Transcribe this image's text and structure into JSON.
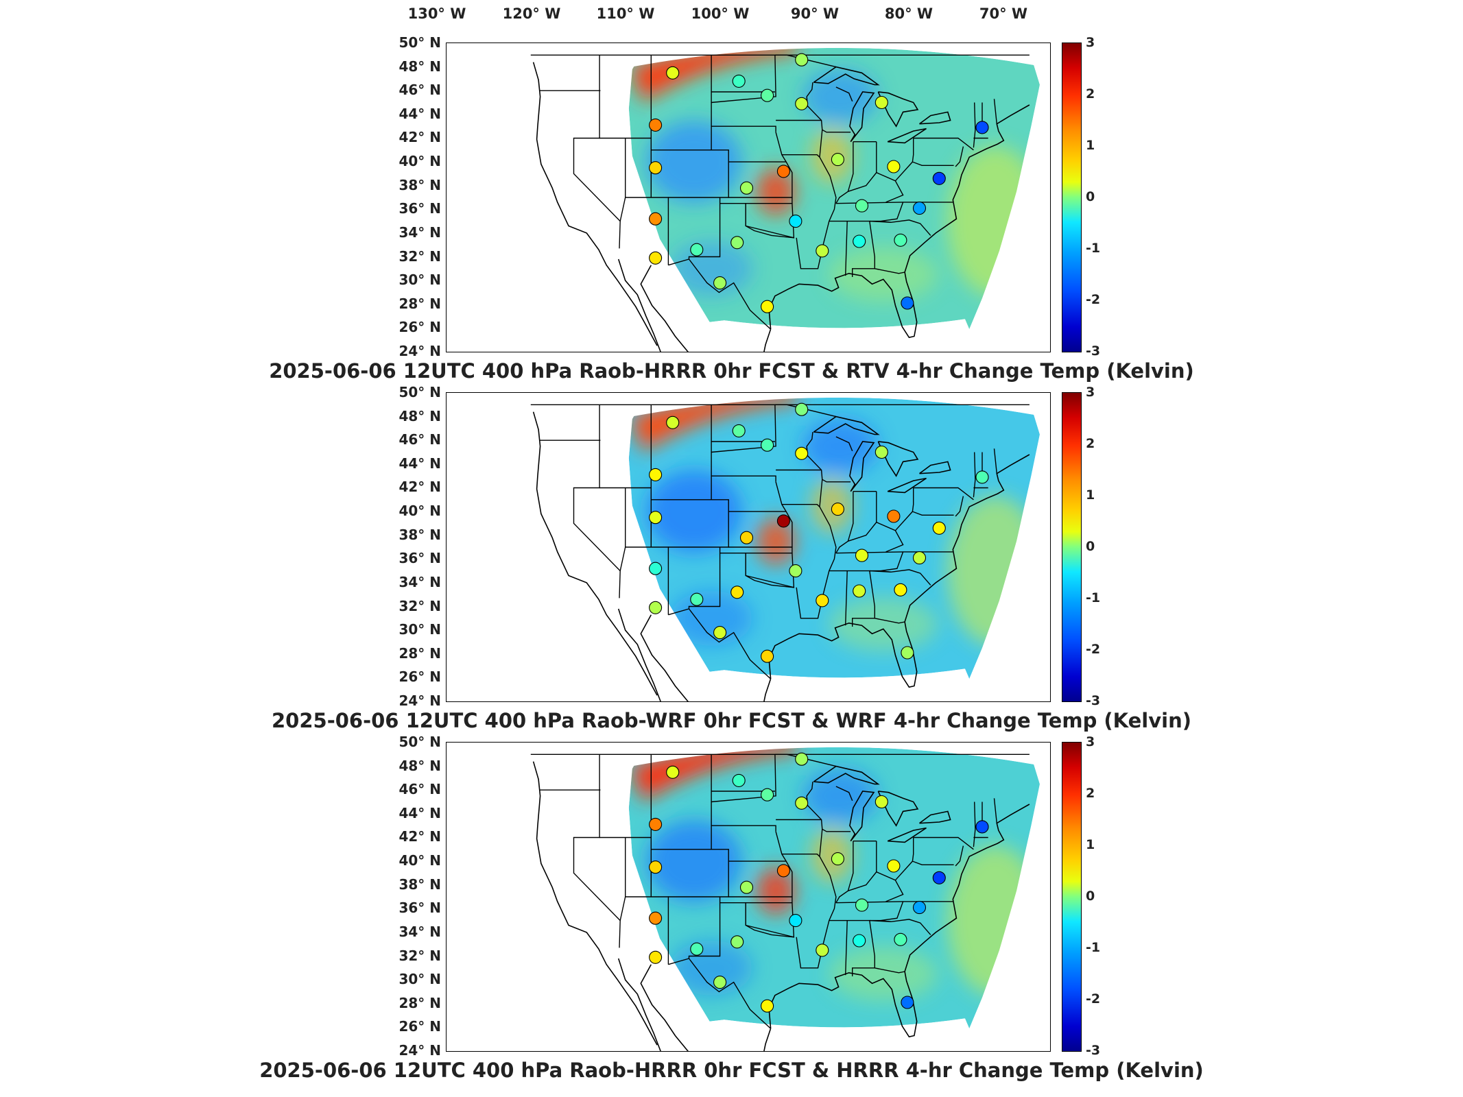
{
  "longitude_labels": [
    "130° W",
    "120° W",
    "110° W",
    "100° W",
    "90° W",
    "80° W",
    "70° W"
  ],
  "latitude_labels": [
    "50° N",
    "48° N",
    "46° N",
    "44° N",
    "42° N",
    "40° N",
    "38° N",
    "36° N",
    "34° N",
    "32° N",
    "30° N",
    "28° N",
    "26° N",
    "24° N"
  ],
  "colorbar": {
    "ticks": [
      "3",
      "2",
      "1",
      "0",
      "-1",
      "-2",
      "-3"
    ],
    "range": [
      -3,
      3
    ],
    "colormap": "jet",
    "colors": {
      "max": "#800000",
      "mid": "#80ff80",
      "min": "#00008f"
    }
  },
  "panels": [
    {
      "title": "2025-06-06 12UTC 400 hPa Raob-HRRR 0hr FCST & RTV 4-hr Change Temp (Kelvin)",
      "field_colors": {
        "base": "#5fd6c0",
        "hot": "#ff3a10",
        "cool": "#2a8cff"
      },
      "stations": [
        {
          "lon": -108.5,
          "lat": 47.5,
          "value": 0.6
        },
        {
          "lon": -100.8,
          "lat": 46.8,
          "value": -0.4
        },
        {
          "lon": -97.5,
          "lat": 45.6,
          "value": -0.2
        },
        {
          "lon": -93.5,
          "lat": 48.6,
          "value": 0.2
        },
        {
          "lon": -110.5,
          "lat": 43.1,
          "value": 1.5
        },
        {
          "lon": -93.5,
          "lat": 44.9,
          "value": 0.4
        },
        {
          "lon": -84.2,
          "lat": 45.0,
          "value": 0.5
        },
        {
          "lon": -72.5,
          "lat": 42.9,
          "value": -1.8
        },
        {
          "lon": -110.5,
          "lat": 39.5,
          "value": 1.0
        },
        {
          "lon": -99.9,
          "lat": 37.8,
          "value": 0.2
        },
        {
          "lon": -95.6,
          "lat": 39.2,
          "value": 1.6
        },
        {
          "lon": -89.3,
          "lat": 40.2,
          "value": 0.3
        },
        {
          "lon": -82.8,
          "lat": 39.6,
          "value": 0.7
        },
        {
          "lon": -77.5,
          "lat": 38.6,
          "value": -1.9
        },
        {
          "lon": -110.5,
          "lat": 35.2,
          "value": 1.4
        },
        {
          "lon": -94.2,
          "lat": 35.0,
          "value": -0.9
        },
        {
          "lon": -86.5,
          "lat": 36.3,
          "value": -0.2
        },
        {
          "lon": -79.8,
          "lat": 36.1,
          "value": -1.3
        },
        {
          "lon": -105.7,
          "lat": 32.6,
          "value": -0.3
        },
        {
          "lon": -101.0,
          "lat": 33.2,
          "value": 0.1
        },
        {
          "lon": -91.1,
          "lat": 32.5,
          "value": 0.4
        },
        {
          "lon": -86.8,
          "lat": 33.3,
          "value": -0.6
        },
        {
          "lon": -82.0,
          "lat": 33.4,
          "value": -0.3
        },
        {
          "lon": -110.5,
          "lat": 31.9,
          "value": 0.9
        },
        {
          "lon": -103.0,
          "lat": 29.8,
          "value": 0.2
        },
        {
          "lon": -97.5,
          "lat": 27.8,
          "value": 0.8
        },
        {
          "lon": -81.2,
          "lat": 28.1,
          "value": -1.6
        }
      ]
    },
    {
      "title": "2025-06-06 12UTC 400 hPa Raob-WRF 0hr FCST & WRF 4-hr Change Temp (Kelvin)",
      "field_colors": {
        "base": "#45c8e8",
        "hot": "#ff4a10",
        "cool": "#1a70ff"
      },
      "stations": [
        {
          "lon": -108.5,
          "lat": 47.5,
          "value": 0.5
        },
        {
          "lon": -100.8,
          "lat": 46.8,
          "value": -0.2
        },
        {
          "lon": -97.5,
          "lat": 45.6,
          "value": -0.3
        },
        {
          "lon": -93.5,
          "lat": 48.6,
          "value": 0.0
        },
        {
          "lon": -110.5,
          "lat": 43.1,
          "value": 0.8
        },
        {
          "lon": -93.5,
          "lat": 44.9,
          "value": 0.7
        },
        {
          "lon": -84.2,
          "lat": 45.0,
          "value": 0.3
        },
        {
          "lon": -72.5,
          "lat": 42.9,
          "value": -0.3
        },
        {
          "lon": -110.5,
          "lat": 39.5,
          "value": 0.6
        },
        {
          "lon": -99.9,
          "lat": 37.8,
          "value": 1.0
        },
        {
          "lon": -95.6,
          "lat": 39.2,
          "value": 2.8
        },
        {
          "lon": -89.3,
          "lat": 40.2,
          "value": 1.0
        },
        {
          "lon": -82.8,
          "lat": 39.6,
          "value": 1.5
        },
        {
          "lon": -77.5,
          "lat": 38.6,
          "value": 0.8
        },
        {
          "lon": -110.5,
          "lat": 35.2,
          "value": -0.5
        },
        {
          "lon": -94.2,
          "lat": 35.0,
          "value": 0.2
        },
        {
          "lon": -86.5,
          "lat": 36.3,
          "value": 0.6
        },
        {
          "lon": -79.8,
          "lat": 36.1,
          "value": 0.4
        },
        {
          "lon": -105.7,
          "lat": 32.6,
          "value": -0.3
        },
        {
          "lon": -101.0,
          "lat": 33.2,
          "value": 0.9
        },
        {
          "lon": -91.1,
          "lat": 32.5,
          "value": 0.9
        },
        {
          "lon": -86.8,
          "lat": 33.3,
          "value": 0.5
        },
        {
          "lon": -82.0,
          "lat": 33.4,
          "value": 0.8
        },
        {
          "lon": -110.5,
          "lat": 31.9,
          "value": 0.3
        },
        {
          "lon": -103.0,
          "lat": 29.8,
          "value": 0.5
        },
        {
          "lon": -97.5,
          "lat": 27.8,
          "value": 1.0
        },
        {
          "lon": -81.2,
          "lat": 28.1,
          "value": 0.2
        }
      ]
    },
    {
      "title": "2025-06-06 12UTC 400 hPa Raob-HRRR 0hr FCST & HRRR 4-hr Change Temp (Kelvin)",
      "field_colors": {
        "base": "#4ed0d4",
        "hot": "#ff3010",
        "cool": "#1a78ff"
      },
      "stations": [
        {
          "lon": -108.5,
          "lat": 47.5,
          "value": 0.6
        },
        {
          "lon": -100.8,
          "lat": 46.8,
          "value": -0.4
        },
        {
          "lon": -97.5,
          "lat": 45.6,
          "value": -0.2
        },
        {
          "lon": -93.5,
          "lat": 48.6,
          "value": 0.2
        },
        {
          "lon": -110.5,
          "lat": 43.1,
          "value": 1.5
        },
        {
          "lon": -93.5,
          "lat": 44.9,
          "value": 0.4
        },
        {
          "lon": -84.2,
          "lat": 45.0,
          "value": 0.5
        },
        {
          "lon": -72.5,
          "lat": 42.9,
          "value": -1.8
        },
        {
          "lon": -110.5,
          "lat": 39.5,
          "value": 1.0
        },
        {
          "lon": -99.9,
          "lat": 37.8,
          "value": 0.2
        },
        {
          "lon": -95.6,
          "lat": 39.2,
          "value": 1.6
        },
        {
          "lon": -89.3,
          "lat": 40.2,
          "value": 0.3
        },
        {
          "lon": -82.8,
          "lat": 39.6,
          "value": 0.7
        },
        {
          "lon": -77.5,
          "lat": 38.6,
          "value": -1.9
        },
        {
          "lon": -110.5,
          "lat": 35.2,
          "value": 1.4
        },
        {
          "lon": -94.2,
          "lat": 35.0,
          "value": -0.9
        },
        {
          "lon": -86.5,
          "lat": 36.3,
          "value": -0.2
        },
        {
          "lon": -79.8,
          "lat": 36.1,
          "value": -1.3
        },
        {
          "lon": -105.7,
          "lat": 32.6,
          "value": -0.3
        },
        {
          "lon": -101.0,
          "lat": 33.2,
          "value": 0.1
        },
        {
          "lon": -91.1,
          "lat": 32.5,
          "value": 0.4
        },
        {
          "lon": -86.8,
          "lat": 33.3,
          "value": -0.6
        },
        {
          "lon": -82.0,
          "lat": 33.4,
          "value": -0.3
        },
        {
          "lon": -110.5,
          "lat": 31.9,
          "value": 0.9
        },
        {
          "lon": -103.0,
          "lat": 29.8,
          "value": 0.2
        },
        {
          "lon": -97.5,
          "lat": 27.8,
          "value": 0.8
        },
        {
          "lon": -81.2,
          "lat": 28.1,
          "value": -1.6
        }
      ]
    }
  ]
}
